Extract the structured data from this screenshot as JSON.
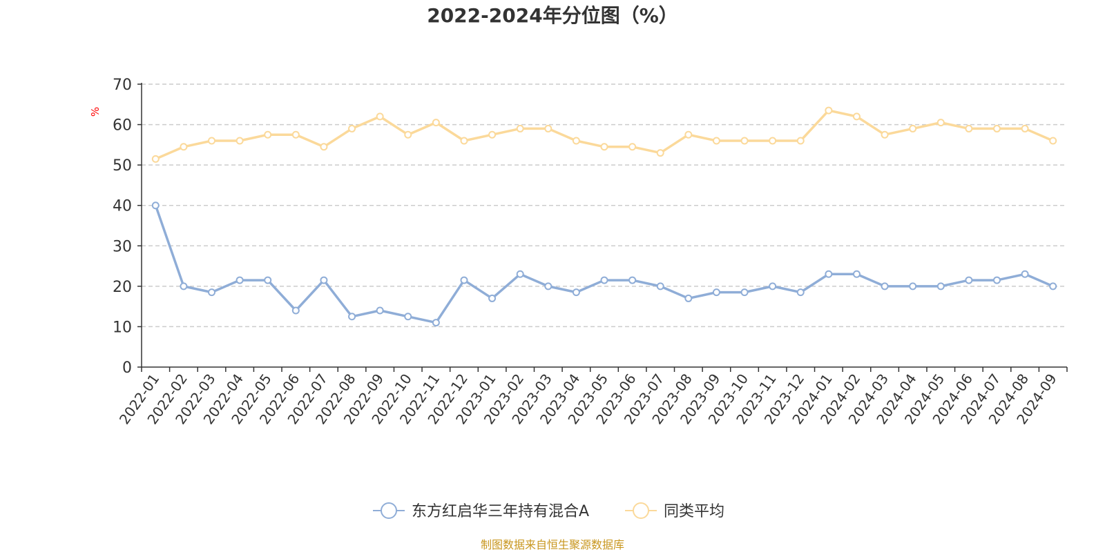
{
  "colors": {
    "series_1": "#8fadd7",
    "series_2": "#fbd99a",
    "axis": "#333333",
    "grid": "#cccccc",
    "unit": "#ff0000",
    "source": "#c8961e"
  },
  "chart_data": {
    "type": "line",
    "title": "2022-2024年分位图（%）",
    "ylabel": "%",
    "xlabel": "",
    "ylim": [
      0,
      70
    ],
    "yticks": [
      0,
      10,
      20,
      30,
      40,
      50,
      60,
      70
    ],
    "grid": true,
    "legend_position": "bottom-center",
    "categories": [
      "2022-01",
      "2022-02",
      "2022-03",
      "2022-04",
      "2022-05",
      "2022-06",
      "2022-07",
      "2022-08",
      "2022-09",
      "2022-10",
      "2022-11",
      "2022-12",
      "2023-01",
      "2023-02",
      "2023-03",
      "2023-04",
      "2023-05",
      "2023-06",
      "2023-07",
      "2023-08",
      "2023-09",
      "2023-10",
      "2023-11",
      "2023-12",
      "2024-01",
      "2024-02",
      "2024-03",
      "2024-04",
      "2024-05",
      "2024-06",
      "2024-07",
      "2024-08",
      "2024-09"
    ],
    "series": [
      {
        "name": "东方红启华三年持有混合A",
        "values": [
          40,
          20,
          18.5,
          21.5,
          21.5,
          14,
          21.5,
          12.5,
          14,
          12.5,
          11,
          21.5,
          17,
          23,
          20,
          18.5,
          21.5,
          21.5,
          20,
          17,
          18.5,
          18.5,
          20,
          18.5,
          23,
          23,
          20,
          20,
          20,
          21.5,
          21.5,
          23,
          20
        ]
      },
      {
        "name": "同类平均",
        "values": [
          51.5,
          54.5,
          56,
          56,
          57.5,
          57.5,
          54.5,
          59,
          62,
          57.5,
          60.5,
          56,
          57.5,
          59,
          59,
          56,
          54.5,
          54.5,
          53,
          57.5,
          56,
          56,
          56,
          56,
          63.5,
          62,
          57.5,
          59,
          60.5,
          59,
          59,
          59,
          56
        ]
      }
    ],
    "source": "制图数据来自恒生聚源数据库"
  }
}
